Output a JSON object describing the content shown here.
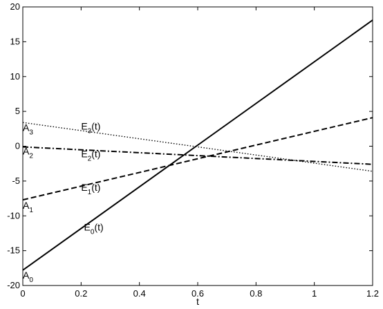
{
  "chart_data": {
    "type": "line",
    "title": "",
    "xlabel": "t",
    "ylabel": "",
    "xlim": [
      0,
      1.2
    ],
    "ylim": [
      -20,
      20
    ],
    "x_ticks": [
      0,
      0.2,
      0.4,
      0.6,
      0.8,
      1,
      1.2
    ],
    "x_tick_labels": [
      "0",
      "0.2",
      "0.4",
      "0.6",
      "0.8",
      "1",
      "1.2"
    ],
    "y_ticks": [
      -20,
      -15,
      -10,
      -5,
      0,
      5,
      10,
      15,
      20
    ],
    "y_tick_labels": [
      "-20",
      "-15",
      "-10",
      "-5",
      "0",
      "5",
      "10",
      "15",
      "20"
    ],
    "grid": false,
    "legend": "none",
    "series": [
      {
        "x": [
          0,
          1.2
        ],
        "y": [
          -17.8,
          18.1
        ],
        "style": "solid",
        "color": "#000000"
      },
      {
        "x": [
          0,
          1.2
        ],
        "y": [
          -7.7,
          4.1
        ],
        "style": "dashed",
        "color": "#000000"
      },
      {
        "x": [
          0,
          1.2
        ],
        "y": [
          -0.1,
          -2.6
        ],
        "style": "dashdot",
        "color": "#000000"
      },
      {
        "x": [
          0,
          1.2
        ],
        "y": [
          3.4,
          -3.6
        ],
        "style": "dotted",
        "color": "#000000"
      }
    ],
    "annotations": [
      {
        "base": "E",
        "sub": "3",
        "tail": "(t)",
        "x": 0.2,
        "y": 2.4
      },
      {
        "base": "E",
        "sub": "2",
        "tail": "(t)",
        "x": 0.2,
        "y": -1.6
      },
      {
        "base": "E",
        "sub": "1",
        "tail": "(t)",
        "x": 0.2,
        "y": -6.4
      },
      {
        "base": "E",
        "sub": "0",
        "tail": "(t)",
        "x": 0.21,
        "y": -12.1
      },
      {
        "base": "A",
        "sub": "3",
        "tail": "",
        "x": 0.0,
        "y": 2.2
      },
      {
        "base": "A",
        "sub": "2",
        "tail": "",
        "x": 0.0,
        "y": -1.2
      },
      {
        "base": "A",
        "sub": "1",
        "tail": "",
        "x": 0.0,
        "y": -9.0
      },
      {
        "base": "A",
        "sub": "0",
        "tail": "",
        "x": 0.0,
        "y": -19.0
      }
    ]
  }
}
